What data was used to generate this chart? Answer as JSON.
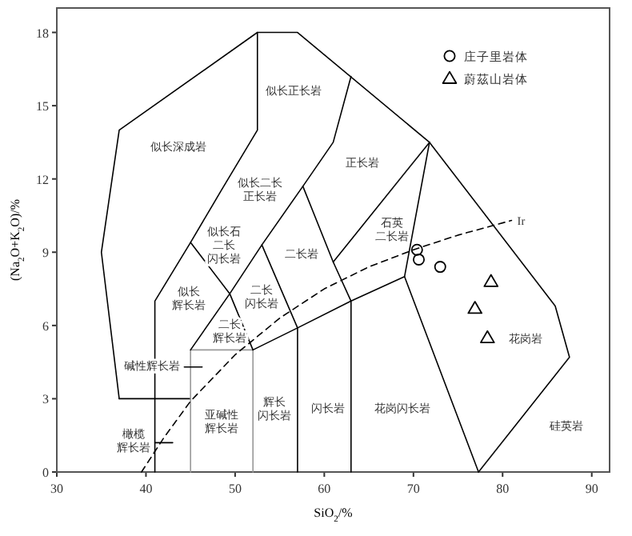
{
  "chart_data": {
    "type": "scatter",
    "xlabel": "SiO$_{2}$/%",
    "ylabel": "(Na$_{2}$O+K$_{2}$O)/%",
    "xlim": [
      30,
      92
    ],
    "ylim": [
      0,
      19
    ],
    "xticks": [
      30,
      40,
      50,
      60,
      70,
      80,
      90
    ],
    "yticks": [
      0,
      3,
      6,
      9,
      12,
      15,
      18
    ],
    "grid": false,
    "legend": "top right",
    "series": [
      {
        "type": "line",
        "color": "#000000",
        "x": [
          37,
          35,
          37,
          52.5,
          57,
          71.8,
          85.9,
          87.5,
          77.3
        ],
        "values": [
          3,
          9,
          14,
          18,
          18,
          13.5,
          6.8,
          4.7,
          0
        ]
      },
      {
        "type": "line",
        "color": "#000000",
        "x": [
          41,
          41,
          45,
          48.4,
          52.5,
          52.5
        ],
        "values": [
          0,
          7,
          9.4,
          11.5,
          14,
          18
        ]
      },
      {
        "type": "line",
        "color": "#000000",
        "x": [
          37,
          45
        ],
        "values": [
          3,
          3
        ]
      },
      {
        "type": "line",
        "color": "#999999",
        "x": [
          45,
          45,
          52,
          52
        ],
        "values": [
          0,
          5,
          5,
          0
        ]
      },
      {
        "type": "line",
        "color": "#000000",
        "x": [
          45,
          49.4,
          53,
          57.6,
          61,
          63
        ],
        "values": [
          5,
          7.3,
          9.3,
          11.7,
          13.5,
          16.2
        ]
      },
      {
        "type": "line",
        "color": "#000000",
        "x": [
          52,
          49.4,
          45
        ],
        "values": [
          5,
          7.3,
          9.4
        ]
      },
      {
        "type": "line",
        "color": "#000000",
        "x": [
          52,
          57,
          57
        ],
        "values": [
          5,
          5.9,
          0
        ]
      },
      {
        "type": "line",
        "color": "#000000",
        "x": [
          53,
          57
        ],
        "values": [
          9.3,
          5.9
        ]
      },
      {
        "type": "line",
        "color": "#000000",
        "x": [
          57,
          63,
          69,
          77.3
        ],
        "values": [
          5.9,
          7,
          8,
          0
        ]
      },
      {
        "type": "line",
        "color": "#000000",
        "x": [
          57.6,
          61,
          63,
          63
        ],
        "values": [
          11.7,
          8.6,
          7,
          0
        ]
      },
      {
        "type": "line",
        "color": "#000000",
        "x": [
          61,
          71.8
        ],
        "values": [
          8.6,
          13.5
        ]
      },
      {
        "type": "line",
        "color": "#000000",
        "x": [
          69,
          71.8
        ],
        "values": [
          8,
          13.5
        ]
      },
      {
        "type": "line",
        "color": "#000000",
        "line_style": "dashed",
        "x": [
          39.5,
          42,
          45,
          50,
          55,
          60,
          65,
          70,
          75,
          81
        ],
        "values": [
          0,
          1.4,
          2.9,
          4.8,
          6.3,
          7.5,
          8.4,
          9.1,
          9.7,
          10.3
        ]
      },
      {
        "type": "line",
        "color": "#000000",
        "x": [
          44.3,
          46.3
        ],
        "values": [
          4.3,
          4.3
        ]
      },
      {
        "type": "line",
        "color": "#000000",
        "x": [
          41,
          43
        ],
        "values": [
          1.2,
          1.2
        ]
      },
      {
        "name": "庄子里岩体",
        "marker": "circle",
        "color": "#000000",
        "x": [
          70.4,
          70.6,
          73.0
        ],
        "values": [
          9.1,
          8.7,
          8.4
        ]
      },
      {
        "name": "蔚茲山岩体",
        "marker": "triangle",
        "color": "#000000",
        "x": [
          78.7,
          76.9,
          78.3
        ],
        "values": [
          7.8,
          6.7,
          5.5
        ]
      }
    ],
    "annotations": [
      "似长深成岩",
      "似长正长岩",
      "似长二长正长岩",
      "似长石二长闪长岩",
      "似长辉长岩",
      "二长岩",
      "二长闪长岩",
      "二长辉长岩",
      "碱性辉长岩",
      "橄榄辉长岩",
      "亚碱性辉长岩",
      "辉长闪长岩",
      "闪长岩",
      "花岗闪长岩",
      "花岗岩",
      "硅英岩",
      "正长岩",
      "石英二长岩",
      {
        "text": "Ir",
        "x": 81,
        "y": 10.3
      }
    ]
  }
}
